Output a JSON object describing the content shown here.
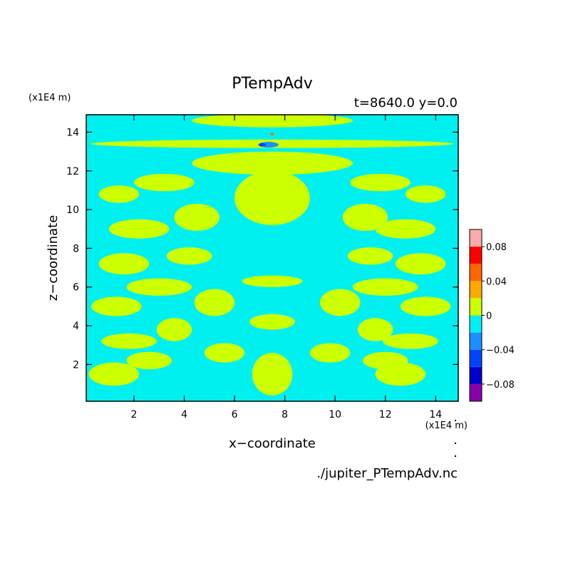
{
  "chart_data": {
    "type": "heatmap",
    "title": "PTempAdv",
    "subtitle": "t=8640.0 y=0.0",
    "xlabel": "x−coordinate",
    "ylabel": "z−coordinate",
    "x_unit": "(x1E4 m)",
    "y_unit": "(x1E4 m)",
    "xlim": [
      0.1,
      14.9
    ],
    "ylim": [
      0.1,
      14.9
    ],
    "x_ticks": [
      "2",
      "4",
      "6",
      "8",
      "10",
      "12",
      "14"
    ],
    "y_ticks": [
      "2",
      "4",
      "6",
      "8",
      "10",
      "12",
      "14"
    ],
    "footer": "./jupiter_PTempAdv.nc",
    "field_background": "#00f0f0",
    "positive_fill": "#ccff00",
    "colorbar": {
      "levels": [
        -0.1,
        -0.08,
        -0.06,
        -0.04,
        -0.02,
        0,
        0.02,
        0.04,
        0.06,
        0.08,
        0.1
      ],
      "colors": [
        "#8800aa",
        "#0000cc",
        "#0044ff",
        "#1a90ff",
        "#00f0f0",
        "#ccff00",
        "#ffaa00",
        "#ff6600",
        "#ff0000",
        "#ffaaaa"
      ],
      "tick_labels": [
        "0.08",
        "0.04",
        "0",
        "−0.04",
        "−0.08"
      ]
    },
    "positive_regions": [
      {
        "x": 1.2,
        "z": 1.5,
        "rx": 1.0,
        "rz": 0.6
      },
      {
        "x": 2.6,
        "z": 2.2,
        "rx": 0.9,
        "rz": 0.45
      },
      {
        "x": 1.8,
        "z": 3.2,
        "rx": 1.1,
        "rz": 0.4
      },
      {
        "x": 3.6,
        "z": 3.8,
        "rx": 0.7,
        "rz": 0.6
      },
      {
        "x": 1.3,
        "z": 5.0,
        "rx": 1.0,
        "rz": 0.5
      },
      {
        "x": 3.0,
        "z": 6.0,
        "rx": 1.3,
        "rz": 0.45
      },
      {
        "x": 1.6,
        "z": 7.2,
        "rx": 1.0,
        "rz": 0.55
      },
      {
        "x": 4.2,
        "z": 7.6,
        "rx": 0.9,
        "rz": 0.45
      },
      {
        "x": 2.2,
        "z": 9.0,
        "rx": 1.2,
        "rz": 0.5
      },
      {
        "x": 4.5,
        "z": 9.6,
        "rx": 0.9,
        "rz": 0.7
      },
      {
        "x": 1.4,
        "z": 10.8,
        "rx": 0.8,
        "rz": 0.45
      },
      {
        "x": 3.2,
        "z": 11.4,
        "rx": 1.2,
        "rz": 0.45
      },
      {
        "x": 5.2,
        "z": 5.2,
        "rx": 0.8,
        "rz": 0.7
      },
      {
        "x": 5.6,
        "z": 2.6,
        "rx": 0.8,
        "rz": 0.5
      },
      {
        "x": 7.5,
        "z": 1.5,
        "rx": 0.8,
        "rz": 1.1
      },
      {
        "x": 7.5,
        "z": 4.2,
        "rx": 0.9,
        "rz": 0.4
      },
      {
        "x": 7.5,
        "z": 6.3,
        "rx": 1.2,
        "rz": 0.3
      },
      {
        "x": 7.5,
        "z": 10.6,
        "rx": 1.5,
        "rz": 1.4
      },
      {
        "x": 7.5,
        "z": 12.4,
        "rx": 3.2,
        "rz": 0.6
      },
      {
        "x": 7.5,
        "z": 14.6,
        "rx": 3.2,
        "rz": 0.35
      },
      {
        "x": 7.5,
        "z": 13.4,
        "rx": 7.2,
        "rz": 0.22
      },
      {
        "x": 9.8,
        "z": 2.6,
        "rx": 0.8,
        "rz": 0.5
      },
      {
        "x": 10.2,
        "z": 5.2,
        "rx": 0.8,
        "rz": 0.7
      },
      {
        "x": 11.4,
        "z": 7.6,
        "rx": 0.9,
        "rz": 0.45
      },
      {
        "x": 11.2,
        "z": 9.6,
        "rx": 0.9,
        "rz": 0.7
      },
      {
        "x": 12.6,
        "z": 1.5,
        "rx": 1.0,
        "rz": 0.6
      },
      {
        "x": 12.0,
        "z": 2.2,
        "rx": 0.9,
        "rz": 0.45
      },
      {
        "x": 13.0,
        "z": 3.2,
        "rx": 1.1,
        "rz": 0.4
      },
      {
        "x": 11.6,
        "z": 3.8,
        "rx": 0.7,
        "rz": 0.6
      },
      {
        "x": 13.6,
        "z": 5.0,
        "rx": 1.0,
        "rz": 0.5
      },
      {
        "x": 12.0,
        "z": 6.0,
        "rx": 1.3,
        "rz": 0.45
      },
      {
        "x": 13.4,
        "z": 7.2,
        "rx": 1.0,
        "rz": 0.55
      },
      {
        "x": 12.8,
        "z": 9.0,
        "rx": 1.2,
        "rz": 0.5
      },
      {
        "x": 13.6,
        "z": 10.8,
        "rx": 0.8,
        "rz": 0.45
      },
      {
        "x": 11.8,
        "z": 11.4,
        "rx": 1.2,
        "rz": 0.45
      }
    ],
    "negative_regions": [
      {
        "x": 7.35,
        "z": 13.35,
        "rx": 0.4,
        "rz": 0.15,
        "value": -0.04
      },
      {
        "x": 7.1,
        "z": 13.35,
        "rx": 0.15,
        "rz": 0.08,
        "value": -0.06
      }
    ],
    "warm_regions": [
      {
        "x": 7.5,
        "z": 13.9,
        "rx": 0.08,
        "rz": 0.06,
        "value": 0.04
      }
    ]
  }
}
